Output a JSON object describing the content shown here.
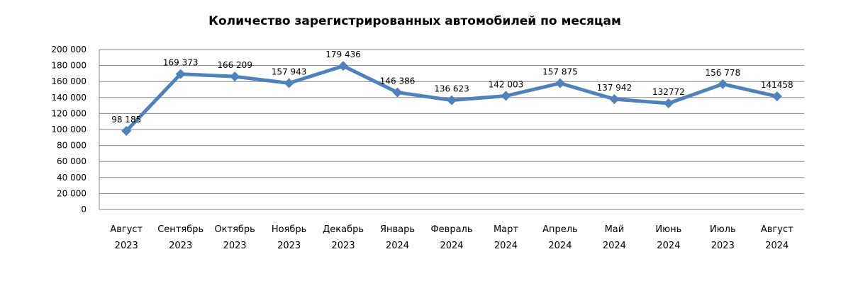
{
  "chart_data": {
    "type": "line",
    "title": "Количество зарегистрированных автомобилей по месяцам",
    "categories": [
      [
        "Август",
        "2023"
      ],
      [
        "Сентябрь",
        "2023"
      ],
      [
        "Октябрь",
        "2023"
      ],
      [
        "Ноябрь",
        "2023"
      ],
      [
        "Декабрь",
        "2023"
      ],
      [
        "Январь",
        "2024"
      ],
      [
        "Февраль",
        "2024"
      ],
      [
        "Март",
        "2024"
      ],
      [
        "Апрель",
        "2024"
      ],
      [
        "Май",
        "2024"
      ],
      [
        "Июнь",
        "2024"
      ],
      [
        "Июль",
        "2023"
      ],
      [
        "Август",
        "2024"
      ]
    ],
    "values": [
      98185,
      169373,
      166209,
      157943,
      179436,
      146386,
      136623,
      142003,
      157875,
      137942,
      132772,
      156778,
      141458
    ],
    "data_labels": [
      "98 185",
      "169 373",
      "166 209",
      "157 943",
      "179 436",
      "146 386",
      "136 623",
      "142 003",
      "157 875",
      "137 942",
      "132772",
      "156 778",
      "141458"
    ],
    "ylim": [
      0,
      200000
    ],
    "yticks": [
      {
        "value": 0,
        "label": "0"
      },
      {
        "value": 20000,
        "label": "20 000"
      },
      {
        "value": 40000,
        "label": "40 000"
      },
      {
        "value": 60000,
        "label": "60 000"
      },
      {
        "value": 80000,
        "label": "80 000"
      },
      {
        "value": 100000,
        "label": "100 000"
      },
      {
        "value": 120000,
        "label": "120 000"
      },
      {
        "value": 140000,
        "label": "140 000"
      },
      {
        "value": 160000,
        "label": "160 000"
      },
      {
        "value": 180000,
        "label": "180 000"
      },
      {
        "value": 200000,
        "label": "200 000"
      }
    ],
    "grid": true,
    "legend": "none",
    "line_color": "#4f81bd",
    "grid_color": "#868686"
  }
}
